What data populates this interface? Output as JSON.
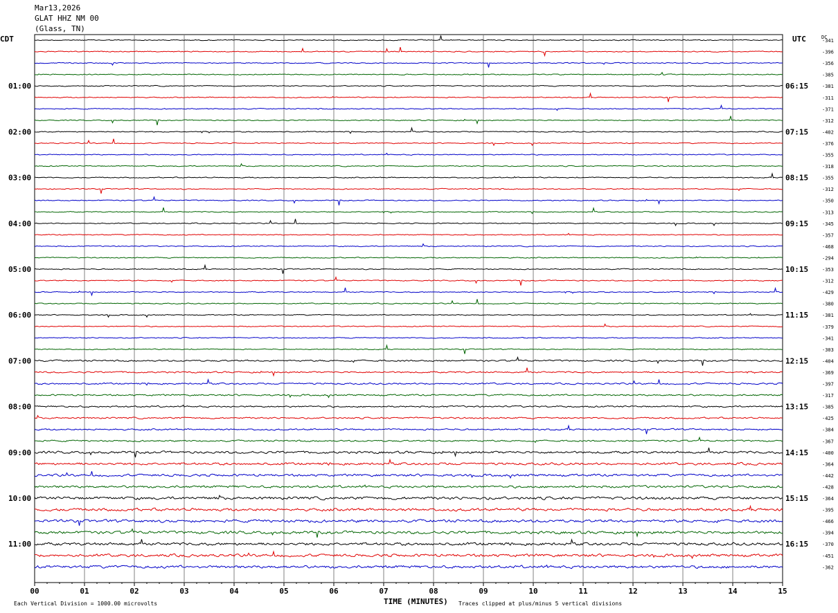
{
  "header": {
    "date": "Mar13,2026",
    "station": "GLAT HHZ NM 00",
    "location": "(Glass, TN)"
  },
  "chart_data": {
    "type": "line",
    "xlabel": "TIME (MINUTES)",
    "left_axis_label": "CDT",
    "right_axis_label": "UTC",
    "dc_label": "DC",
    "x_ticks": [
      "00",
      "01",
      "02",
      "03",
      "04",
      "05",
      "06",
      "07",
      "08",
      "09",
      "10",
      "11",
      "12",
      "13",
      "14",
      "15"
    ],
    "xlim": [
      0,
      15
    ],
    "left_hour_labels": [
      "01:00",
      "02:00",
      "03:00",
      "04:00",
      "05:00",
      "06:00",
      "07:00",
      "08:00",
      "09:00",
      "10:00",
      "11:00"
    ],
    "right_hour_labels": [
      "06:15",
      "07:15",
      "08:15",
      "09:15",
      "10:15",
      "11:15",
      "12:15",
      "13:15",
      "14:15",
      "15:15",
      "16:15"
    ],
    "trace_colors": [
      "#000000",
      "#e00000",
      "#0000c8",
      "#006400"
    ],
    "dc_offsets": [
      -341,
      -396,
      -356,
      -385,
      -381,
      -311,
      -371,
      -312,
      -402,
      -376,
      -355,
      -318,
      -355,
      -312,
      -350,
      -313,
      -345,
      -357,
      -468,
      -294,
      -353,
      -312,
      -429,
      -380,
      -381,
      -379,
      -341,
      -303,
      -404,
      -369,
      -397,
      -317,
      -385,
      -425,
      -384,
      -367,
      -400,
      -364,
      -442,
      -428,
      -364,
      -395,
      -466,
      -394,
      -370,
      -451,
      -362
    ],
    "grid": true,
    "footer_left": "Each Vertical Division = 1000.00 microvolts",
    "footer_right": "Traces clipped at plus/minus 5 vertical divisions"
  }
}
